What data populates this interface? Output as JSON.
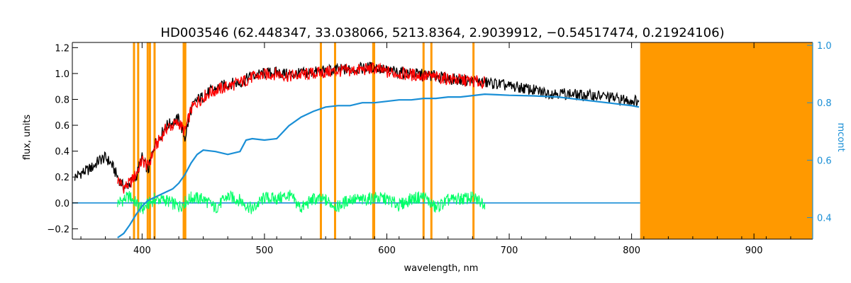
{
  "chart_data": {
    "type": "line",
    "title": "HD003546    (62.448347, 33.038066, 5213.8364, 2.9039912, −0.54517474, 0.21924106)",
    "xlabel": "wavelength, nm",
    "ylabel": "flux, units",
    "y2label": "mcont",
    "xlim": [
      343,
      948
    ],
    "ylim": [
      -0.28,
      1.24
    ],
    "y2lim": [
      0.325,
      1.01
    ],
    "x_ticks": [
      "400",
      "500",
      "600",
      "700",
      "800",
      "900"
    ],
    "y_ticks": [
      "−0.2",
      "0.0",
      "0.2",
      "0.4",
      "0.6",
      "0.8",
      "1.0",
      "1.2"
    ],
    "y2_ticks": [
      "0.4",
      "0.6",
      "0.8",
      "1.0"
    ],
    "grid": false,
    "colors": {
      "observed": "#000000",
      "model": "#ff0000",
      "residual": "#00ff66",
      "mcont": "#1a8fd6",
      "mask": "#ff9900",
      "model_highlight": "#ffff00"
    },
    "masked_region": [
      807,
      948
    ],
    "masked_lines": [
      393.4,
      396.8,
      404.6,
      406.4,
      410.2,
      434.0,
      435.3,
      546.1,
      557.7,
      588.9,
      589.6,
      630.0,
      636.4,
      670.8
    ],
    "series": [
      {
        "role": "observed",
        "x": [
          345,
          350,
          355,
          360,
          365,
          370,
          375,
          380,
          385,
          390,
          395,
          400,
          405,
          410,
          415,
          420,
          425,
          430,
          435,
          440,
          445,
          450,
          455,
          460,
          465,
          470,
          480,
          490,
          500,
          510,
          520,
          530,
          540,
          550,
          560,
          570,
          580,
          590,
          600,
          610,
          620,
          630,
          640,
          650,
          660,
          670,
          680,
          690,
          700,
          710,
          720,
          730,
          740,
          750,
          760,
          770,
          780,
          790,
          800,
          806
        ],
        "y": [
          0.2,
          0.23,
          0.25,
          0.28,
          0.33,
          0.35,
          0.3,
          0.2,
          0.12,
          0.15,
          0.2,
          0.35,
          0.25,
          0.45,
          0.52,
          0.6,
          0.62,
          0.65,
          0.5,
          0.72,
          0.8,
          0.82,
          0.86,
          0.88,
          0.9,
          0.92,
          0.93,
          0.98,
          1.0,
          1.01,
          0.99,
          1.0,
          1.01,
          1.02,
          1.03,
          1.03,
          1.04,
          1.05,
          1.02,
          1.01,
          1.0,
          0.99,
          0.98,
          0.96,
          0.95,
          0.94,
          0.93,
          0.92,
          0.9,
          0.89,
          0.87,
          0.85,
          0.85,
          0.84,
          0.83,
          0.83,
          0.82,
          0.8,
          0.79,
          0.79
        ]
      },
      {
        "role": "model",
        "x": [
          380,
          385,
          390,
          395,
          400,
          405,
          410,
          415,
          420,
          425,
          430,
          435,
          440,
          445,
          450,
          455,
          460,
          470,
          480,
          490,
          500,
          510,
          520,
          530,
          540,
          550,
          560,
          570,
          580,
          590,
          600,
          610,
          620,
          630,
          640,
          650,
          660,
          670,
          680
        ],
        "y": [
          0.18,
          0.12,
          0.15,
          0.22,
          0.33,
          0.28,
          0.42,
          0.5,
          0.58,
          0.6,
          0.62,
          0.55,
          0.72,
          0.78,
          0.82,
          0.85,
          0.87,
          0.9,
          0.93,
          0.97,
          0.99,
          1.0,
          0.98,
          0.99,
          1.0,
          1.01,
          1.02,
          1.02,
          1.03,
          1.04,
          1.01,
          1.0,
          0.99,
          0.98,
          0.97,
          0.96,
          0.95,
          0.94,
          0.93
        ]
      },
      {
        "role": "mcont",
        "x": [
          380,
          385,
          390,
          395,
          400,
          405,
          410,
          415,
          420,
          425,
          430,
          435,
          440,
          445,
          450,
          460,
          470,
          480,
          485,
          490,
          500,
          510,
          520,
          530,
          540,
          550,
          560,
          570,
          580,
          590,
          600,
          610,
          620,
          630,
          640,
          650,
          660,
          670,
          680,
          690,
          700,
          720,
          740,
          760,
          780,
          800,
          806
        ],
        "y": [
          0.33,
          0.345,
          0.375,
          0.41,
          0.44,
          0.46,
          0.47,
          0.48,
          0.49,
          0.5,
          0.52,
          0.55,
          0.59,
          0.62,
          0.635,
          0.63,
          0.62,
          0.63,
          0.67,
          0.675,
          0.67,
          0.675,
          0.72,
          0.75,
          0.77,
          0.785,
          0.79,
          0.79,
          0.8,
          0.8,
          0.805,
          0.81,
          0.81,
          0.815,
          0.815,
          0.82,
          0.82,
          0.825,
          0.83,
          0.828,
          0.826,
          0.824,
          0.82,
          0.81,
          0.8,
          0.79,
          0.785
        ]
      },
      {
        "role": "residual",
        "x": [
          380,
          390,
          400,
          410,
          420,
          430,
          440,
          450,
          460,
          470,
          480,
          490,
          500,
          510,
          520,
          530,
          540,
          550,
          560,
          570,
          580,
          590,
          600,
          610,
          620,
          630,
          640,
          650,
          660,
          670,
          680
        ],
        "y": [
          0.0,
          0.05,
          -0.05,
          0.03,
          0.02,
          -0.03,
          0.04,
          0.03,
          -0.04,
          0.05,
          0.02,
          -0.05,
          0.04,
          0.03,
          0.06,
          -0.04,
          0.03,
          0.02,
          -0.03,
          0.03,
          0.02,
          0.04,
          0.03,
          -0.02,
          0.03,
          0.05,
          -0.04,
          0.02,
          0.03,
          0.04,
          0.0
        ]
      }
    ]
  }
}
